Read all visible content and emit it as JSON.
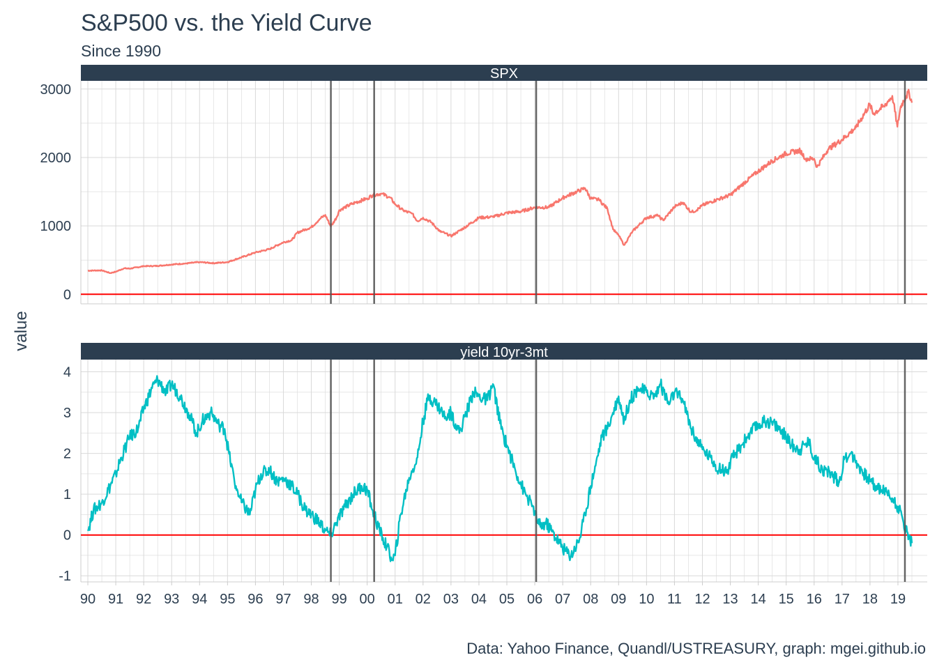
{
  "chart_data": {
    "type": "line",
    "title": "S&P500 vs. the Yield Curve",
    "subtitle": "Since 1990",
    "caption": "Data: Yahoo Finance, Quandl/USTREASURY, graph: mgei.github.io",
    "ylabel": "value",
    "xlabel": "",
    "x_range": [
      1990.0,
      2019.55
    ],
    "x_tick_labels": [
      "90",
      "91",
      "92",
      "93",
      "94",
      "95",
      "96",
      "97",
      "98",
      "99",
      "00",
      "01",
      "02",
      "03",
      "04",
      "05",
      "06",
      "07",
      "08",
      "09",
      "10",
      "11",
      "12",
      "13",
      "14",
      "15",
      "16",
      "17",
      "18",
      "19"
    ],
    "x_tick_years": [
      1990,
      1991,
      1992,
      1993,
      1994,
      1995,
      1996,
      1997,
      1998,
      1999,
      2000,
      2001,
      2002,
      2003,
      2004,
      2005,
      2006,
      2007,
      2008,
      2009,
      2010,
      2011,
      2012,
      2013,
      2014,
      2015,
      2016,
      2017,
      2018,
      2019
    ],
    "inversion_lines_x": [
      1998.7,
      2000.25,
      2006.05,
      2019.25
    ],
    "reference_line_y": 0,
    "grid": true,
    "colors": {
      "spx": "#f8766d",
      "yield": "#00bfc4",
      "zero_line": "#ff0000",
      "inversion_lines": "#555555",
      "strip": "#2c3e50",
      "grid": "#d9d9d9"
    },
    "panels": [
      {
        "strip": "SPX",
        "ylim": [
          -140,
          3120
        ],
        "y_ticks": [
          0,
          1000,
          2000,
          3000
        ],
        "y_tick_labels": [
          "0",
          "1000",
          "2000",
          "3000"
        ],
        "series": {
          "color": "#f8766d",
          "x": [
            1990.0,
            1990.5,
            1990.8,
            1991.0,
            1991.3,
            1991.5,
            1992.0,
            1992.5,
            1993.0,
            1993.5,
            1994.0,
            1994.5,
            1995.0,
            1995.5,
            1996.0,
            1996.5,
            1997.0,
            1997.3,
            1997.5,
            1997.8,
            1998.0,
            1998.3,
            1998.5,
            1998.7,
            1998.9,
            1999.0,
            1999.5,
            2000.0,
            2000.2,
            2000.5,
            2000.8,
            2001.0,
            2001.3,
            2001.6,
            2001.8,
            2002.0,
            2002.3,
            2002.6,
            2002.8,
            2003.0,
            2003.2,
            2003.5,
            2004.0,
            2004.5,
            2005.0,
            2005.5,
            2006.0,
            2006.5,
            2007.0,
            2007.5,
            2007.8,
            2008.0,
            2008.3,
            2008.6,
            2008.8,
            2009.0,
            2009.2,
            2009.5,
            2010.0,
            2010.4,
            2010.6,
            2011.0,
            2011.3,
            2011.6,
            2011.8,
            2012.0,
            2012.5,
            2013.0,
            2013.5,
            2014.0,
            2014.5,
            2015.0,
            2015.5,
            2015.7,
            2016.0,
            2016.1,
            2016.5,
            2017.0,
            2017.5,
            2018.0,
            2018.1,
            2018.5,
            2018.8,
            2018.98,
            2019.1,
            2019.3,
            2019.4,
            2019.5
          ],
          "y": [
            345,
            350,
            310,
            330,
            380,
            375,
            410,
            415,
            435,
            450,
            470,
            455,
            470,
            540,
            610,
            660,
            760,
            790,
            900,
            950,
            980,
            1100,
            1160,
            990,
            1120,
            1230,
            1330,
            1400,
            1450,
            1470,
            1420,
            1320,
            1220,
            1180,
            1070,
            1120,
            1050,
            920,
            890,
            850,
            900,
            980,
            1120,
            1130,
            1190,
            1210,
            1270,
            1270,
            1410,
            1500,
            1550,
            1400,
            1380,
            1250,
            950,
            860,
            720,
            920,
            1120,
            1150,
            1080,
            1280,
            1340,
            1200,
            1230,
            1300,
            1380,
            1450,
            1630,
            1800,
            1950,
            2060,
            2100,
            1980,
            1980,
            1860,
            2120,
            2260,
            2440,
            2780,
            2640,
            2750,
            2900,
            2450,
            2750,
            2900,
            2950,
            2800
          ]
        }
      },
      {
        "strip": "yield 10yr-3mt",
        "ylim": [
          -1.15,
          4.3
        ],
        "y_ticks": [
          -1,
          0,
          1,
          2,
          3,
          4
        ],
        "y_tick_labels": [
          "-1",
          "0",
          "1",
          "2",
          "3",
          "4"
        ],
        "series": {
          "color": "#00bfc4",
          "x": [
            1990.0,
            1990.2,
            1990.5,
            1990.8,
            1991.0,
            1991.2,
            1991.5,
            1991.8,
            1992.0,
            1992.3,
            1992.5,
            1992.8,
            1993.0,
            1993.3,
            1993.6,
            1993.9,
            1994.1,
            1994.4,
            1994.7,
            1994.9,
            1995.1,
            1995.3,
            1995.5,
            1995.8,
            1996.0,
            1996.2,
            1996.5,
            1996.8,
            1997.0,
            1997.3,
            1997.5,
            1997.8,
            1998.0,
            1998.3,
            1998.5,
            1998.7,
            1998.9,
            1999.2,
            1999.5,
            1999.8,
            2000.0,
            2000.2,
            2000.4,
            2000.7,
            2000.9,
            2001.0,
            2001.2,
            2001.5,
            2001.8,
            2002.0,
            2002.2,
            2002.5,
            2002.8,
            2003.0,
            2003.3,
            2003.5,
            2003.8,
            2004.0,
            2004.3,
            2004.5,
            2004.8,
            2005.0,
            2005.3,
            2005.6,
            2005.9,
            2006.0,
            2006.2,
            2006.4,
            2006.6,
            2006.9,
            2007.1,
            2007.3,
            2007.6,
            2007.8,
            2008.0,
            2008.2,
            2008.4,
            2008.6,
            2008.8,
            2009.0,
            2009.2,
            2009.4,
            2009.7,
            2010.0,
            2010.3,
            2010.5,
            2010.8,
            2011.0,
            2011.3,
            2011.6,
            2011.9,
            2012.0,
            2012.3,
            2012.6,
            2012.9,
            2013.1,
            2013.4,
            2013.7,
            2014.0,
            2014.3,
            2014.6,
            2014.9,
            2015.2,
            2015.5,
            2015.8,
            2016.0,
            2016.3,
            2016.6,
            2016.9,
            2017.1,
            2017.3,
            2017.6,
            2017.9,
            2018.2,
            2018.5,
            2018.8,
            2019.0,
            2019.2,
            2019.35,
            2019.5
          ],
          "y": [
            0.1,
            0.6,
            0.8,
            1.2,
            1.5,
            1.9,
            2.4,
            2.6,
            3.1,
            3.6,
            3.8,
            3.5,
            3.7,
            3.4,
            3.0,
            2.5,
            2.8,
            3.0,
            2.7,
            2.6,
            1.8,
            1.2,
            0.8,
            0.5,
            1.1,
            1.5,
            1.6,
            1.3,
            1.4,
            1.2,
            1.0,
            0.6,
            0.5,
            0.3,
            0.1,
            0.0,
            0.3,
            0.7,
            1.0,
            1.2,
            1.1,
            0.6,
            0.2,
            -0.3,
            -0.6,
            -0.5,
            0.5,
            1.4,
            1.9,
            2.8,
            3.4,
            3.2,
            2.9,
            3.0,
            2.5,
            2.9,
            3.5,
            3.4,
            3.3,
            3.7,
            2.6,
            2.2,
            1.6,
            1.1,
            0.7,
            0.5,
            0.2,
            0.3,
            0.1,
            -0.2,
            -0.4,
            -0.5,
            -0.1,
            0.5,
            1.2,
            1.8,
            2.4,
            2.6,
            3.0,
            3.4,
            2.8,
            3.3,
            3.6,
            3.5,
            3.4,
            3.7,
            3.2,
            3.5,
            3.3,
            2.6,
            2.2,
            2.1,
            1.9,
            1.6,
            1.6,
            1.9,
            2.2,
            2.5,
            2.7,
            2.8,
            2.7,
            2.5,
            2.2,
            2.1,
            2.3,
            1.9,
            1.6,
            1.5,
            1.3,
            1.9,
            2.0,
            1.7,
            1.4,
            1.2,
            1.1,
            0.9,
            0.7,
            0.3,
            0.05,
            -0.2
          ]
        }
      }
    ]
  }
}
